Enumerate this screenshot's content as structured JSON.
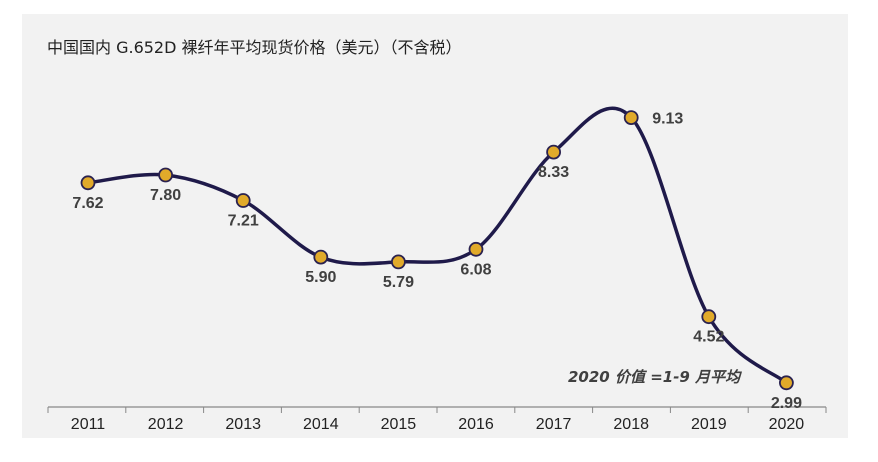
{
  "chart_data": {
    "type": "line",
    "title": "中国国内 G.652D 裸纤年平均现货价格（美元）（不含税）",
    "xlabel": "",
    "ylabel": "",
    "categories": [
      "2011",
      "2012",
      "2013",
      "2014",
      "2015",
      "2016",
      "2017",
      "2018",
      "2019",
      "2020"
    ],
    "series": [
      {
        "values": [
          7.62,
          7.8,
          7.21,
          5.9,
          5.79,
          6.08,
          8.33,
          9.13,
          4.52,
          2.99
        ],
        "labels": [
          "7.62",
          "7.80",
          "7.21",
          "5.90",
          "5.79",
          "6.08",
          "8.33",
          "9.13",
          "4.52",
          "2.99"
        ]
      }
    ],
    "ylim": [
      0,
      11
    ],
    "grid": false,
    "smooth": true,
    "annotation": "2020 价值 =1-9 月平均",
    "colors": {
      "line": "#1f1a4a",
      "marker_fill": "#e1aa2a",
      "marker_stroke": "#2a2250",
      "axis": "#888888",
      "label": "#404040"
    }
  }
}
